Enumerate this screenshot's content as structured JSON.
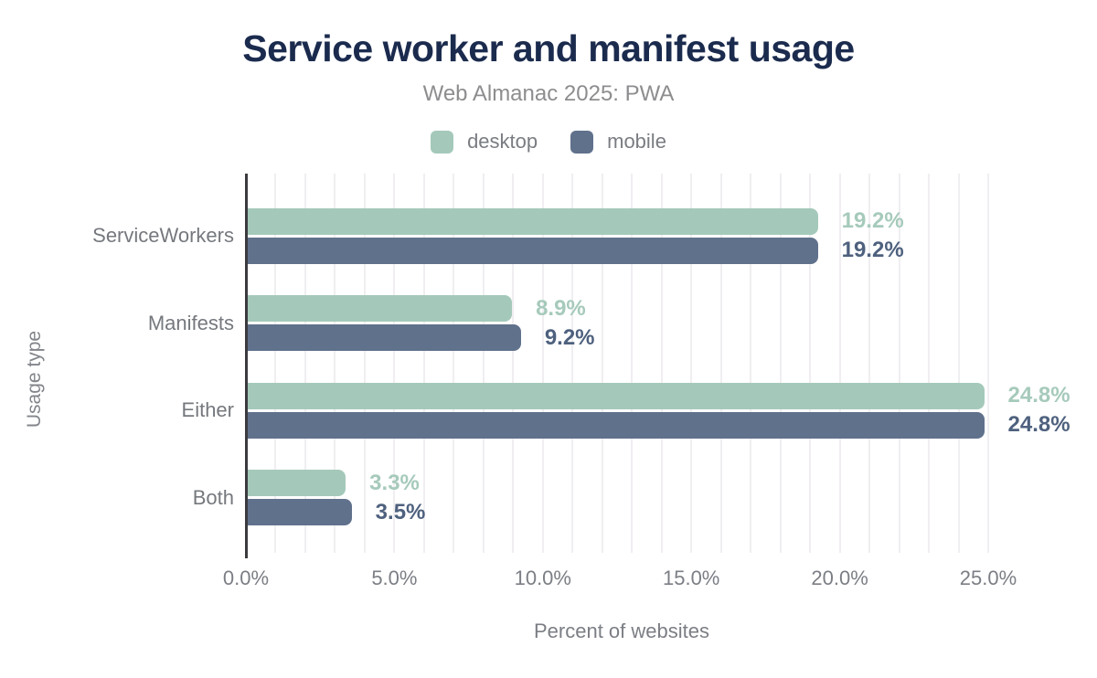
{
  "header": {
    "title": "Service worker and manifest usage",
    "subtitle": "Web Almanac 2025: PWA"
  },
  "legend": {
    "items": [
      {
        "label": "desktop",
        "color": "#a4c9ba"
      },
      {
        "label": "mobile",
        "color": "#60718c"
      }
    ]
  },
  "chart_data": {
    "type": "bar",
    "orientation": "horizontal",
    "title": "Service worker and manifest usage",
    "subtitle": "Web Almanac 2025: PWA",
    "categories": [
      "ServiceWorkers",
      "Manifests",
      "Either",
      "Both"
    ],
    "series": [
      {
        "name": "desktop",
        "color": "#a4c9ba",
        "label_color": "#a6cabb",
        "values": [
          19.2,
          8.9,
          24.8,
          3.3
        ],
        "labels": [
          "19.2%",
          "8.9%",
          "24.8%",
          "3.3%"
        ]
      },
      {
        "name": "mobile",
        "color": "#60718c",
        "label_color": "#4e617e",
        "values": [
          19.2,
          9.2,
          24.8,
          3.5
        ],
        "labels": [
          "19.2%",
          "9.2%",
          "24.8%",
          "3.5%"
        ]
      }
    ],
    "xlabel": "Percent of websites",
    "ylabel": "Usage type",
    "x_ticks": [
      "0.0%",
      "5.0%",
      "10.0%",
      "15.0%",
      "20.0%",
      "25.0%"
    ],
    "x_tick_values": [
      0,
      5,
      10,
      15,
      20,
      25
    ],
    "xlim": [
      0,
      25.4
    ],
    "grid": "minor-vertical",
    "grid_minor_step_pct": 1,
    "legend_position": "top-center"
  }
}
